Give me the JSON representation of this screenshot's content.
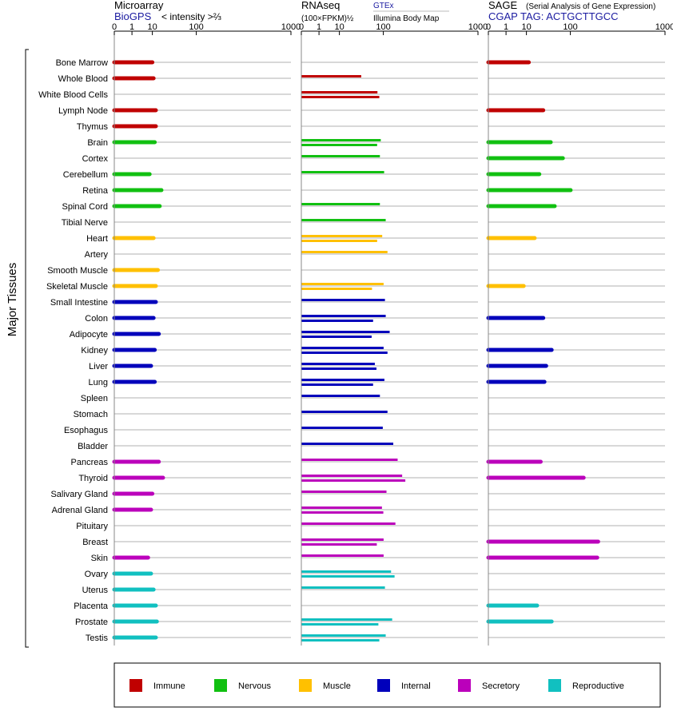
{
  "panels": [
    {
      "id": "microarray",
      "title": "Microarray",
      "subtitle": "BioGPS",
      "unit": "< intensity >⅔"
    },
    {
      "id": "rnaseq",
      "title": "RNAseq",
      "unit": "(100×FPKM)½",
      "source_top": "GTEx",
      "source_bottom": "Illumina Body Map"
    },
    {
      "id": "sage",
      "title": "SAGE",
      "title_note": "(Serial Analysis of Gene Expression)",
      "subtitle": "CGAP TAG: ACTGCTTGCC"
    }
  ],
  "y_axis_label": "Major Tissues",
  "colors": {
    "Immune": "#c00000",
    "Nervous": "#11c011",
    "Muscle": "#ffc000",
    "Internal": "#0000bb",
    "Secretory": "#bb00bb",
    "Reproductive": "#11c0c0",
    "link": "#1a1aa0"
  },
  "chart_data": {
    "type": "bar",
    "x_scale": "intensity^(1/3)",
    "xlim": [
      0,
      1000
    ],
    "x_ticks": [
      0,
      1,
      10,
      100,
      1000
    ],
    "legend": [
      "Immune",
      "Nervous",
      "Muscle",
      "Internal",
      "Secretory",
      "Reproductive"
    ],
    "legend_placement": "bottom",
    "tissues": [
      {
        "name": "Bone Marrow",
        "group": "Immune",
        "microarray": 10,
        "rnaseq": [],
        "sage": 12
      },
      {
        "name": "Whole Blood",
        "group": "Immune",
        "microarray": 11,
        "rnaseq": [
          39
        ],
        "sage": null
      },
      {
        "name": "White Blood Cells",
        "group": "Immune",
        "microarray": null,
        "rnaseq": [
          80,
          86
        ],
        "sage": null
      },
      {
        "name": "Lymph Node",
        "group": "Immune",
        "microarray": 13,
        "rnaseq": [],
        "sage": 30
      },
      {
        "name": "Thymus",
        "group": "Immune",
        "microarray": 13,
        "rnaseq": [],
        "sage": null
      },
      {
        "name": "Brain",
        "group": "Nervous",
        "microarray": 12,
        "rnaseq": [
          91,
          79
        ],
        "sage": 44
      },
      {
        "name": "Cortex",
        "group": "Nervous",
        "microarray": null,
        "rnaseq": [
          88
        ],
        "sage": 75
      },
      {
        "name": "Cerebellum",
        "group": "Nervous",
        "microarray": 8,
        "rnaseq": [
          103
        ],
        "sage": 24
      },
      {
        "name": "Retina",
        "group": "Nervous",
        "microarray": 19,
        "rnaseq": [],
        "sage": 101
      },
      {
        "name": "Spinal Cord",
        "group": "Nervous",
        "microarray": 17,
        "rnaseq": [
          88
        ],
        "sage": 53
      },
      {
        "name": "Tibial Nerve",
        "group": "Nervous",
        "microarray": null,
        "rnaseq": [
          109
        ],
        "sage": null
      },
      {
        "name": "Heart",
        "group": "Muscle",
        "microarray": 11,
        "rnaseq": [
          96,
          79
        ],
        "sage": 18
      },
      {
        "name": "Artery",
        "group": "Muscle",
        "microarray": null,
        "rnaseq": [
          116
        ],
        "sage": null
      },
      {
        "name": "Smooth Muscle",
        "group": "Muscle",
        "microarray": 15,
        "rnaseq": [],
        "sage": null
      },
      {
        "name": "Skeletal Muscle",
        "group": "Muscle",
        "microarray": 13,
        "rnaseq": [
          101,
          64
        ],
        "sage": 8
      },
      {
        "name": "Small Intestine",
        "group": "Internal",
        "microarray": 13,
        "rnaseq": [
          106
        ],
        "sage": null
      },
      {
        "name": "Colon",
        "group": "Internal",
        "microarray": 11,
        "rnaseq": [
          109,
          67
        ],
        "sage": 30
      },
      {
        "name": "Adipocyte",
        "group": "Internal",
        "microarray": 16,
        "rnaseq": [
          125,
          63
        ],
        "sage": null
      },
      {
        "name": "Kidney",
        "group": "Internal",
        "microarray": 12,
        "rnaseq": [
          101,
          116
        ],
        "sage": 46
      },
      {
        "name": "Liver",
        "group": "Internal",
        "microarray": 9,
        "rnaseq": [
          72,
          77
        ],
        "sage": 35
      },
      {
        "name": "Lung",
        "group": "Internal",
        "microarray": 12,
        "rnaseq": [
          104,
          67
        ],
        "sage": 32
      },
      {
        "name": "Spleen",
        "group": "Internal",
        "microarray": null,
        "rnaseq": [
          88
        ],
        "sage": null
      },
      {
        "name": "Stomach",
        "group": "Internal",
        "microarray": null,
        "rnaseq": [
          116
        ],
        "sage": null
      },
      {
        "name": "Esophagus",
        "group": "Internal",
        "microarray": null,
        "rnaseq": [
          98
        ],
        "sage": null
      },
      {
        "name": "Bladder",
        "group": "Internal",
        "microarray": null,
        "rnaseq": [
          141
        ],
        "sage": null
      },
      {
        "name": "Pancreas",
        "group": "Secretory",
        "microarray": 16,
        "rnaseq": [
          162
        ],
        "sage": 26
      },
      {
        "name": "Thyroid",
        "group": "Secretory",
        "microarray": 21,
        "rnaseq": [
          186,
          204
        ],
        "sage": 157
      },
      {
        "name": "Salivary Gland",
        "group": "Secretory",
        "microarray": 10,
        "rnaseq": [
          112
        ],
        "sage": null
      },
      {
        "name": "Adrenal Gland",
        "group": "Secretory",
        "microarray": 9,
        "rnaseq": [
          95,
          100
        ],
        "sage": null
      },
      {
        "name": "Pituitary",
        "group": "Secretory",
        "microarray": null,
        "rnaseq": [
          151
        ],
        "sage": null
      },
      {
        "name": "Breast",
        "group": "Secretory",
        "microarray": null,
        "rnaseq": [
          101,
          78
        ],
        "sage": 240
      },
      {
        "name": "Skin",
        "group": "Secretory",
        "microarray": 7,
        "rnaseq": [
          101
        ],
        "sage": 234
      },
      {
        "name": "Ovary",
        "group": "Reproductive",
        "microarray": 9,
        "rnaseq": [
          131,
          147
        ],
        "sage": null
      },
      {
        "name": "Uterus",
        "group": "Reproductive",
        "microarray": 11,
        "rnaseq": [
          106
        ],
        "sage": null
      },
      {
        "name": "Placenta",
        "group": "Reproductive",
        "microarray": 13,
        "rnaseq": [],
        "sage": 21
      },
      {
        "name": "Prostate",
        "group": "Reproductive",
        "microarray": 14,
        "rnaseq": [
          136,
          83
        ],
        "sage": 46
      },
      {
        "name": "Testis",
        "group": "Reproductive",
        "microarray": 13,
        "rnaseq": [
          109,
          86
        ],
        "sage": null
      }
    ]
  }
}
